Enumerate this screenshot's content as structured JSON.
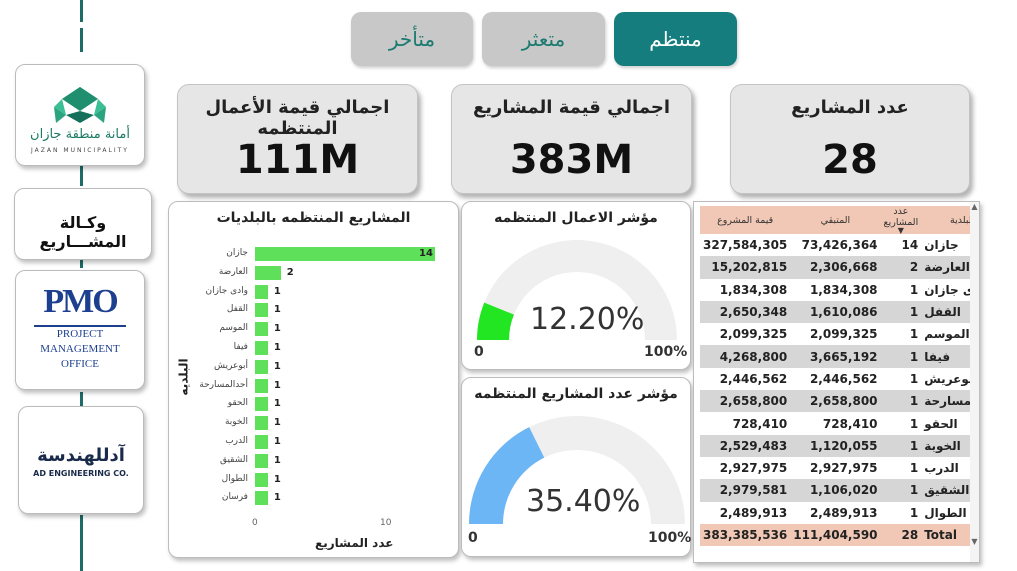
{
  "tabs": [
    {
      "label": "متأخر",
      "active": false
    },
    {
      "label": "متعثر",
      "active": false
    },
    {
      "label": "منتظم",
      "active": true
    }
  ],
  "sidebar": {
    "jazan_logo_ar": "أمانة منطقة جازان",
    "jazan_logo_en": "JAZAN MUNICIPALITY",
    "agency_label": "وكـالة المشـــاريع",
    "pmo_abbr": "PMO",
    "pmo_lines": [
      "PROJECT",
      "MANAGEMENT",
      "OFFICE"
    ],
    "ad_logo_ar": "آدللهندسة",
    "ad_logo_en": "AD ENGINEERING CO."
  },
  "kpis": {
    "work_value": {
      "title": "اجمالي قيمة الأعمال المنتظمه",
      "value": "111M"
    },
    "project_value": {
      "title": "اجمالي قيمة المشاريع",
      "value": "383M"
    },
    "project_count": {
      "title": "عدد المشاريع",
      "value": "28"
    }
  },
  "bar_chart": {
    "title": "المشاريع المنتظمه بالبلديات",
    "xlabel": "عدد المشاريع",
    "ylabel": "البلديه",
    "ticks": [
      "0",
      "10"
    ]
  },
  "gauges": {
    "work": {
      "title": "مؤشر الاعمال المنتظمه",
      "value_text": "12.20%",
      "min": "0",
      "max": "100%",
      "color": "#21e621"
    },
    "count": {
      "title": "مؤشر عدد المشاريع المنتظمه",
      "value_text": "35.40%",
      "min": "0",
      "max": "100%",
      "color": "#6cb6f5"
    }
  },
  "table": {
    "headers": {
      "value": "قيمة المشروع",
      "remaining": "المتبقي",
      "count": "عدد المشاريع",
      "municipality": "البلدية"
    },
    "rows": [
      {
        "municipality": "جازان",
        "count": "14",
        "remaining": "73,426,364",
        "value": "327,584,305"
      },
      {
        "municipality": "العارضة",
        "count": "2",
        "remaining": "2,306,668",
        "value": "15,202,815"
      },
      {
        "municipality": "وادى جازان",
        "count": "1",
        "remaining": "1,834,308",
        "value": "1,834,308"
      },
      {
        "municipality": "القفل",
        "count": "1",
        "remaining": "1,610,086",
        "value": "2,650,348"
      },
      {
        "municipality": "الموسم",
        "count": "1",
        "remaining": "2,099,325",
        "value": "2,099,325"
      },
      {
        "municipality": "فيفا",
        "count": "1",
        "remaining": "3,665,192",
        "value": "4,268,800"
      },
      {
        "municipality": "أبوعريش",
        "count": "1",
        "remaining": "2,446,562",
        "value": "2,446,562"
      },
      {
        "municipality": "أحدالمسارحة",
        "count": "1",
        "remaining": "2,658,800",
        "value": "2,658,800"
      },
      {
        "municipality": "الحقو",
        "count": "1",
        "remaining": "728,410",
        "value": "728,410"
      },
      {
        "municipality": "الخوبة",
        "count": "1",
        "remaining": "1,120,055",
        "value": "2,529,483"
      },
      {
        "municipality": "الدرب",
        "count": "1",
        "remaining": "2,927,975",
        "value": "2,927,975"
      },
      {
        "municipality": "الشقيق",
        "count": "1",
        "remaining": "1,106,020",
        "value": "2,979,581"
      },
      {
        "municipality": "الطوال",
        "count": "1",
        "remaining": "2,489,913",
        "value": "2,489,913"
      }
    ],
    "total": {
      "label": "Total",
      "count": "28",
      "remaining": "111,404,590",
      "value": "383,385,536"
    }
  },
  "chart_data": [
    {
      "type": "bar",
      "title": "المشاريع المنتظمه بالبلديات",
      "xlabel": "عدد المشاريع",
      "ylabel": "البلديه",
      "categories": [
        "جازان",
        "العارضة",
        "وادى جازان",
        "القفل",
        "الموسم",
        "فيفا",
        "أبوعريش",
        "أحدالمسارحة",
        "الحقو",
        "الخوبة",
        "الدرب",
        "الشقيق",
        "الطوال",
        "فرسان"
      ],
      "values": [
        14,
        2,
        1,
        1,
        1,
        1,
        1,
        1,
        1,
        1,
        1,
        1,
        1,
        1
      ],
      "xlim": [
        0,
        14
      ]
    },
    {
      "type": "gauge",
      "title": "مؤشر الاعمال المنتظمه",
      "value": 12.2,
      "min": 0,
      "max": 100
    },
    {
      "type": "gauge",
      "title": "مؤشر عدد المشاريع المنتظمه",
      "value": 35.4,
      "min": 0,
      "max": 100
    }
  ]
}
